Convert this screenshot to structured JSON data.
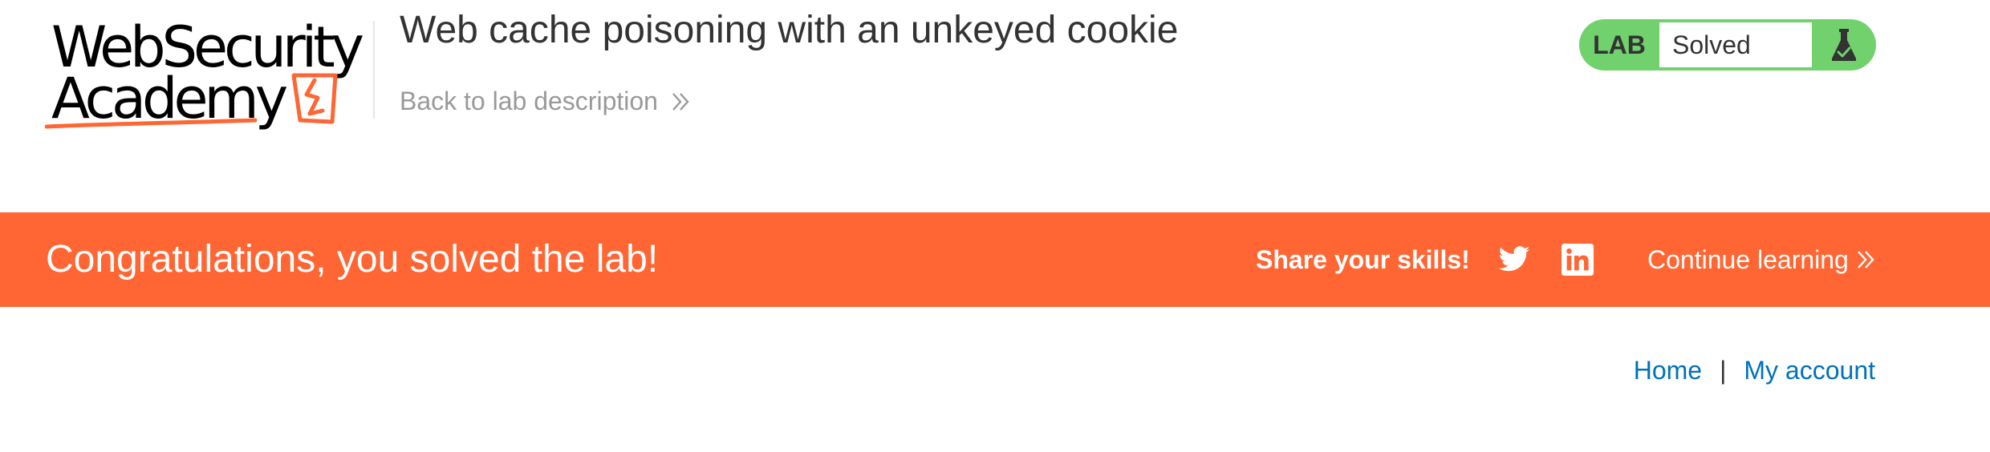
{
  "header": {
    "logo": {
      "line1": "WebSecurity",
      "line2": "Academy",
      "accent_color": "#ff6633"
    },
    "lab_title": "Web cache poisoning with an unkeyed cookie",
    "back_link_label": "Back to lab description",
    "back_link_icon": "double-chevron-right-icon"
  },
  "status": {
    "label": "LAB",
    "value": "Solved",
    "icon": "flask-check-icon",
    "color": "#70d16d"
  },
  "banner": {
    "title": "Congratulations, you solved the lab!",
    "share_label": "Share your skills!",
    "twitter_icon": "twitter-icon",
    "linkedin_icon": "linkedin-icon",
    "continue_label": "Continue learning",
    "color": "#ff6633"
  },
  "nav": {
    "home_label": "Home",
    "separator": "|",
    "account_label": "My account",
    "link_color": "#0071bc"
  }
}
